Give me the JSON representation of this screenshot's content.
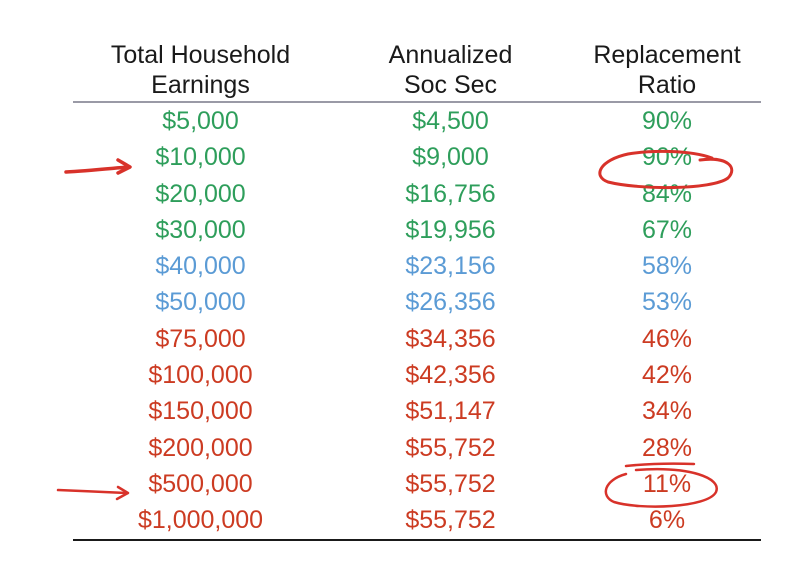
{
  "header": {
    "col1": [
      "Total Household",
      "Earnings"
    ],
    "col2": [
      "Annualized",
      "Soc Sec"
    ],
    "col3": [
      "Replacement",
      "Ratio"
    ]
  },
  "colors": {
    "green": "#2e9e5b",
    "blue": "#5b9bd5",
    "red": "#cc3b22",
    "annotation": "#d8322a"
  },
  "rows": [
    {
      "earnings": "$5,000",
      "soc_sec": "$4,500",
      "ratio": "90%",
      "color": "green"
    },
    {
      "earnings": "$10,000",
      "soc_sec": "$9,000",
      "ratio": "90%",
      "color": "green"
    },
    {
      "earnings": "$20,000",
      "soc_sec": "$16,756",
      "ratio": "84%",
      "color": "green"
    },
    {
      "earnings": "$30,000",
      "soc_sec": "$19,956",
      "ratio": "67%",
      "color": "green"
    },
    {
      "earnings": "$40,000",
      "soc_sec": "$23,156",
      "ratio": "58%",
      "color": "blue"
    },
    {
      "earnings": "$50,000",
      "soc_sec": "$26,356",
      "ratio": "53%",
      "color": "blue"
    },
    {
      "earnings": "$75,000",
      "soc_sec": "$34,356",
      "ratio": "46%",
      "color": "red"
    },
    {
      "earnings": "$100,000",
      "soc_sec": "$42,356",
      "ratio": "42%",
      "color": "red"
    },
    {
      "earnings": "$150,000",
      "soc_sec": "$51,147",
      "ratio": "34%",
      "color": "red"
    },
    {
      "earnings": "$200,000",
      "soc_sec": "$55,752",
      "ratio": "28%",
      "color": "red"
    },
    {
      "earnings": "$500,000",
      "soc_sec": "$55,752",
      "ratio": "11%",
      "color": "red"
    },
    {
      "earnings": "$1,000,000",
      "soc_sec": "$55,752",
      "ratio": "6%",
      "color": "red"
    }
  ]
}
